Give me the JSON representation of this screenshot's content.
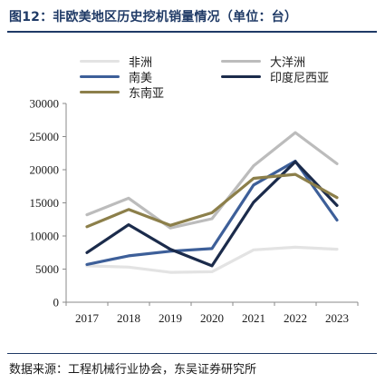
{
  "header": {
    "title": "图12：非欧美地区历史挖机销量情况（单位：台）"
  },
  "chart_data": {
    "type": "line",
    "title": "",
    "xlabel": "",
    "ylabel": "",
    "x": [
      "2017",
      "2018",
      "2019",
      "2020",
      "2021",
      "2022",
      "2023"
    ],
    "ylim": [
      0,
      30000
    ],
    "yticks": [
      "0",
      "5000",
      "10000",
      "15000",
      "20000",
      "25000",
      "30000"
    ],
    "grid": false,
    "legend_position": "top",
    "series": [
      {
        "name": "非洲",
        "color": "#e3e3e3",
        "values": [
          5500,
          5300,
          4500,
          4600,
          7900,
          8300,
          8000
        ]
      },
      {
        "name": "大洋洲",
        "color": "#bcbcbc",
        "values": [
          13200,
          15700,
          11200,
          12600,
          20600,
          25600,
          20900
        ]
      },
      {
        "name": "南美",
        "color": "#3d5f99",
        "values": [
          5700,
          7000,
          7700,
          8100,
          17700,
          21300,
          12400
        ]
      },
      {
        "name": "印度尼西亚",
        "color": "#1b2b4b",
        "values": [
          7500,
          11700,
          8000,
          5500,
          15100,
          21200,
          14600
        ]
      },
      {
        "name": "东南亚",
        "color": "#8c7f4a",
        "values": [
          11400,
          14000,
          11600,
          13500,
          18700,
          19300,
          15800
        ]
      }
    ]
  },
  "footer": {
    "source": "数据来源：工程机械行业协会，东吴证券研究所"
  }
}
